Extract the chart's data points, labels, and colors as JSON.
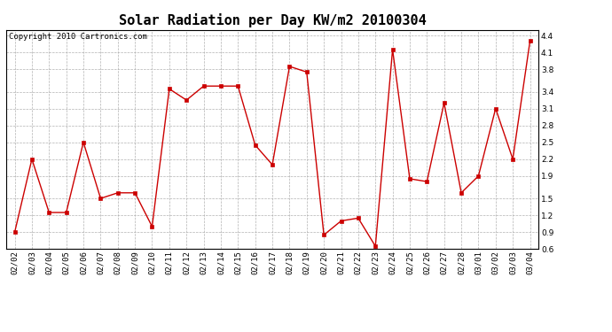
{
  "title": "Solar Radiation per Day KW/m2 20100304",
  "copyright": "Copyright 2010 Cartronics.com",
  "labels": [
    "02/02",
    "02/03",
    "02/04",
    "02/05",
    "02/06",
    "02/07",
    "02/08",
    "02/09",
    "02/10",
    "02/11",
    "02/12",
    "02/13",
    "02/14",
    "02/15",
    "02/16",
    "02/17",
    "02/18",
    "02/19",
    "02/20",
    "02/21",
    "02/22",
    "02/23",
    "02/24",
    "02/25",
    "02/26",
    "02/27",
    "02/28",
    "03/01",
    "03/02",
    "03/03",
    "03/04"
  ],
  "values": [
    0.9,
    2.2,
    1.25,
    1.25,
    2.5,
    1.5,
    1.6,
    1.6,
    1.0,
    3.45,
    3.25,
    3.5,
    3.5,
    3.5,
    2.45,
    2.1,
    3.85,
    3.75,
    0.85,
    1.1,
    1.15,
    0.65,
    4.15,
    1.85,
    1.8,
    3.2,
    1.6,
    1.9,
    3.1,
    2.2,
    4.3
  ],
  "line_color": "#cc0000",
  "marker": "s",
  "marker_size": 2.5,
  "bg_color": "#ffffff",
  "grid_color": "#aaaaaa",
  "ylim": [
    0.6,
    4.5
  ],
  "yticks": [
    0.6,
    0.9,
    1.2,
    1.5,
    1.9,
    2.2,
    2.5,
    2.8,
    3.1,
    3.4,
    3.8,
    4.1,
    4.4
  ],
  "title_fontsize": 11,
  "tick_fontsize": 6.5,
  "copyright_fontsize": 6.5
}
